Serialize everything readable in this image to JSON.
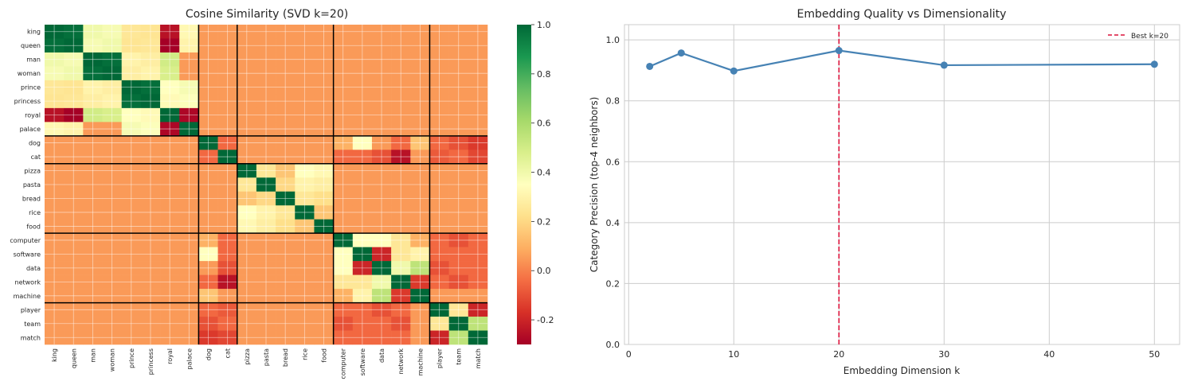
{
  "chart_data": [
    {
      "type": "heatmap",
      "title": "Cosine Similarity (SVD k=20)",
      "labels": [
        "king",
        "queen",
        "man",
        "woman",
        "prince",
        "princess",
        "royal",
        "palace",
        "dog",
        "cat",
        "pizza",
        "pasta",
        "bread",
        "rice",
        "food",
        "computer",
        "software",
        "data",
        "network",
        "machine",
        "player",
        "team",
        "match"
      ],
      "groups": [
        8,
        2,
        5,
        5,
        3
      ],
      "values": [
        [
          1.0,
          0.98,
          0.4,
          0.38,
          0.25,
          0.24,
          -0.25,
          0.32,
          0.05,
          0.05,
          0.05,
          0.05,
          0.05,
          0.05,
          0.05,
          0.05,
          0.05,
          0.05,
          0.05,
          0.05,
          0.05,
          0.05,
          0.05
        ],
        [
          0.98,
          1.0,
          0.38,
          0.4,
          0.24,
          0.25,
          -0.3,
          0.3,
          0.05,
          0.05,
          0.05,
          0.05,
          0.05,
          0.05,
          0.05,
          0.05,
          0.05,
          0.05,
          0.05,
          0.05,
          0.05,
          0.05,
          0.05
        ],
        [
          0.4,
          0.38,
          1.0,
          0.98,
          0.3,
          0.28,
          0.5,
          0.05,
          0.05,
          0.05,
          0.05,
          0.05,
          0.05,
          0.05,
          0.05,
          0.05,
          0.05,
          0.05,
          0.05,
          0.05,
          0.05,
          0.05,
          0.05
        ],
        [
          0.38,
          0.4,
          0.98,
          1.0,
          0.28,
          0.3,
          0.48,
          0.05,
          0.05,
          0.05,
          0.05,
          0.05,
          0.05,
          0.05,
          0.05,
          0.05,
          0.05,
          0.05,
          0.05,
          0.05,
          0.05,
          0.05,
          0.05
        ],
        [
          0.25,
          0.24,
          0.3,
          0.28,
          1.0,
          0.98,
          0.35,
          0.38,
          0.05,
          0.05,
          0.05,
          0.05,
          0.05,
          0.05,
          0.05,
          0.05,
          0.05,
          0.05,
          0.05,
          0.05,
          0.05,
          0.05,
          0.05
        ],
        [
          0.24,
          0.25,
          0.28,
          0.3,
          0.98,
          1.0,
          0.33,
          0.36,
          0.05,
          0.05,
          0.05,
          0.05,
          0.05,
          0.05,
          0.05,
          0.05,
          0.05,
          0.05,
          0.05,
          0.05,
          0.05,
          0.05,
          0.05
        ],
        [
          -0.25,
          -0.3,
          0.5,
          0.48,
          0.35,
          0.33,
          1.0,
          -0.28,
          0.05,
          0.05,
          0.05,
          0.05,
          0.05,
          0.05,
          0.05,
          0.05,
          0.05,
          0.05,
          0.05,
          0.05,
          0.05,
          0.05,
          0.05
        ],
        [
          0.32,
          0.3,
          0.05,
          0.05,
          0.38,
          0.36,
          -0.28,
          1.0,
          0.05,
          0.05,
          0.05,
          0.05,
          0.05,
          0.05,
          0.05,
          0.05,
          0.05,
          0.05,
          0.05,
          0.05,
          0.05,
          0.05,
          0.05
        ],
        [
          0.05,
          0.05,
          0.05,
          0.05,
          0.05,
          0.05,
          0.05,
          0.05,
          1.0,
          -0.05,
          0.05,
          0.05,
          0.05,
          0.05,
          0.05,
          0.1,
          0.35,
          0.05,
          -0.05,
          0.15,
          -0.05,
          -0.1,
          -0.15
        ],
        [
          0.05,
          0.05,
          0.05,
          0.05,
          0.05,
          0.05,
          0.05,
          0.05,
          -0.05,
          1.0,
          0.05,
          0.05,
          0.05,
          0.05,
          0.05,
          -0.05,
          -0.05,
          -0.1,
          -0.25,
          0.05,
          -0.08,
          -0.05,
          -0.12
        ],
        [
          0.05,
          0.05,
          0.05,
          0.05,
          0.05,
          0.05,
          0.05,
          0.05,
          0.05,
          0.05,
          1.0,
          0.25,
          0.15,
          0.35,
          0.32,
          0.05,
          0.05,
          0.05,
          0.05,
          0.05,
          0.05,
          0.05,
          0.05
        ],
        [
          0.05,
          0.05,
          0.05,
          0.05,
          0.05,
          0.05,
          0.05,
          0.05,
          0.05,
          0.05,
          0.25,
          1.0,
          0.2,
          0.3,
          0.28,
          0.05,
          0.05,
          0.05,
          0.05,
          0.05,
          0.05,
          0.05,
          0.05
        ],
        [
          0.05,
          0.05,
          0.05,
          0.05,
          0.05,
          0.05,
          0.05,
          0.05,
          0.05,
          0.05,
          0.15,
          0.2,
          1.0,
          0.25,
          0.22,
          0.05,
          0.05,
          0.05,
          0.05,
          0.05,
          0.05,
          0.05,
          0.05
        ],
        [
          0.05,
          0.05,
          0.05,
          0.05,
          0.05,
          0.05,
          0.05,
          0.05,
          0.05,
          0.05,
          0.35,
          0.3,
          0.25,
          1.0,
          0.15,
          0.05,
          0.05,
          0.05,
          0.05,
          0.05,
          0.05,
          0.05,
          0.05
        ],
        [
          0.05,
          0.05,
          0.05,
          0.05,
          0.05,
          0.05,
          0.05,
          0.05,
          0.05,
          0.05,
          0.32,
          0.28,
          0.22,
          0.15,
          1.0,
          0.05,
          0.05,
          0.05,
          0.05,
          0.05,
          0.05,
          0.05,
          0.05
        ],
        [
          0.05,
          0.05,
          0.05,
          0.05,
          0.05,
          0.05,
          0.05,
          0.05,
          0.1,
          -0.05,
          0.05,
          0.05,
          0.05,
          0.05,
          0.05,
          1.0,
          0.35,
          0.35,
          0.25,
          0.1,
          -0.05,
          -0.1,
          -0.05
        ],
        [
          0.05,
          0.05,
          0.05,
          0.05,
          0.05,
          0.05,
          0.05,
          0.05,
          0.35,
          -0.05,
          0.05,
          0.05,
          0.05,
          0.05,
          0.05,
          0.35,
          1.0,
          -0.2,
          0.25,
          0.3,
          -0.05,
          -0.05,
          -0.05
        ],
        [
          0.05,
          0.05,
          0.05,
          0.05,
          0.05,
          0.05,
          0.05,
          0.05,
          0.05,
          -0.1,
          0.05,
          0.05,
          0.05,
          0.05,
          0.05,
          0.35,
          -0.2,
          1.0,
          0.4,
          0.55,
          -0.1,
          -0.05,
          -0.05
        ],
        [
          0.05,
          0.05,
          0.05,
          0.05,
          0.05,
          0.05,
          0.05,
          0.05,
          -0.05,
          -0.25,
          0.05,
          0.05,
          0.05,
          0.05,
          0.05,
          0.25,
          0.25,
          0.4,
          1.0,
          -0.15,
          -0.05,
          -0.1,
          -0.05
        ],
        [
          0.05,
          0.05,
          0.05,
          0.05,
          0.05,
          0.05,
          0.05,
          0.05,
          0.15,
          0.05,
          0.05,
          0.05,
          0.05,
          0.05,
          0.05,
          0.1,
          0.3,
          0.55,
          -0.15,
          1.0,
          0.05,
          0.05,
          0.05
        ],
        [
          0.05,
          0.05,
          0.05,
          0.05,
          0.05,
          0.05,
          0.05,
          0.05,
          -0.05,
          -0.08,
          0.05,
          0.05,
          0.05,
          0.05,
          0.05,
          -0.05,
          -0.05,
          -0.1,
          -0.05,
          0.05,
          1.0,
          0.25,
          -0.2
        ],
        [
          0.05,
          0.05,
          0.05,
          0.05,
          0.05,
          0.05,
          0.05,
          0.05,
          -0.1,
          -0.05,
          0.05,
          0.05,
          0.05,
          0.05,
          0.05,
          -0.1,
          -0.05,
          -0.05,
          -0.1,
          0.05,
          0.25,
          1.0,
          0.55
        ],
        [
          0.05,
          0.05,
          0.05,
          0.05,
          0.05,
          0.05,
          0.05,
          0.05,
          -0.15,
          -0.12,
          0.05,
          0.05,
          0.05,
          0.05,
          0.05,
          -0.05,
          -0.05,
          -0.05,
          -0.05,
          0.05,
          -0.2,
          0.55,
          1.0
        ]
      ],
      "colorbar": {
        "min": -0.3,
        "max": 1.0,
        "ticks": [
          -0.2,
          0.0,
          0.2,
          0.4,
          0.6,
          0.8,
          1.0
        ],
        "colormap": "RdYlGn"
      }
    },
    {
      "type": "line",
      "title": "Embedding Quality vs Dimensionality",
      "xlabel": "Embedding Dimension k",
      "ylabel": "Category Precision (top-4 neighbors)",
      "x": [
        2,
        5,
        10,
        20,
        30,
        50
      ],
      "y": [
        0.913,
        0.957,
        0.898,
        0.965,
        0.917,
        0.92
      ],
      "xlim": [
        -0.4,
        52.4
      ],
      "ylim": [
        0,
        1.05
      ],
      "xticks": [
        0,
        10,
        20,
        30,
        40,
        50
      ],
      "yticks": [
        0.0,
        0.2,
        0.4,
        0.6,
        0.8,
        1.0
      ],
      "series_color": "#4682b4",
      "vline": {
        "x": 20,
        "label": "Best k=20",
        "color": "#dc143c"
      },
      "legend": "top-right",
      "grid": true
    }
  ]
}
